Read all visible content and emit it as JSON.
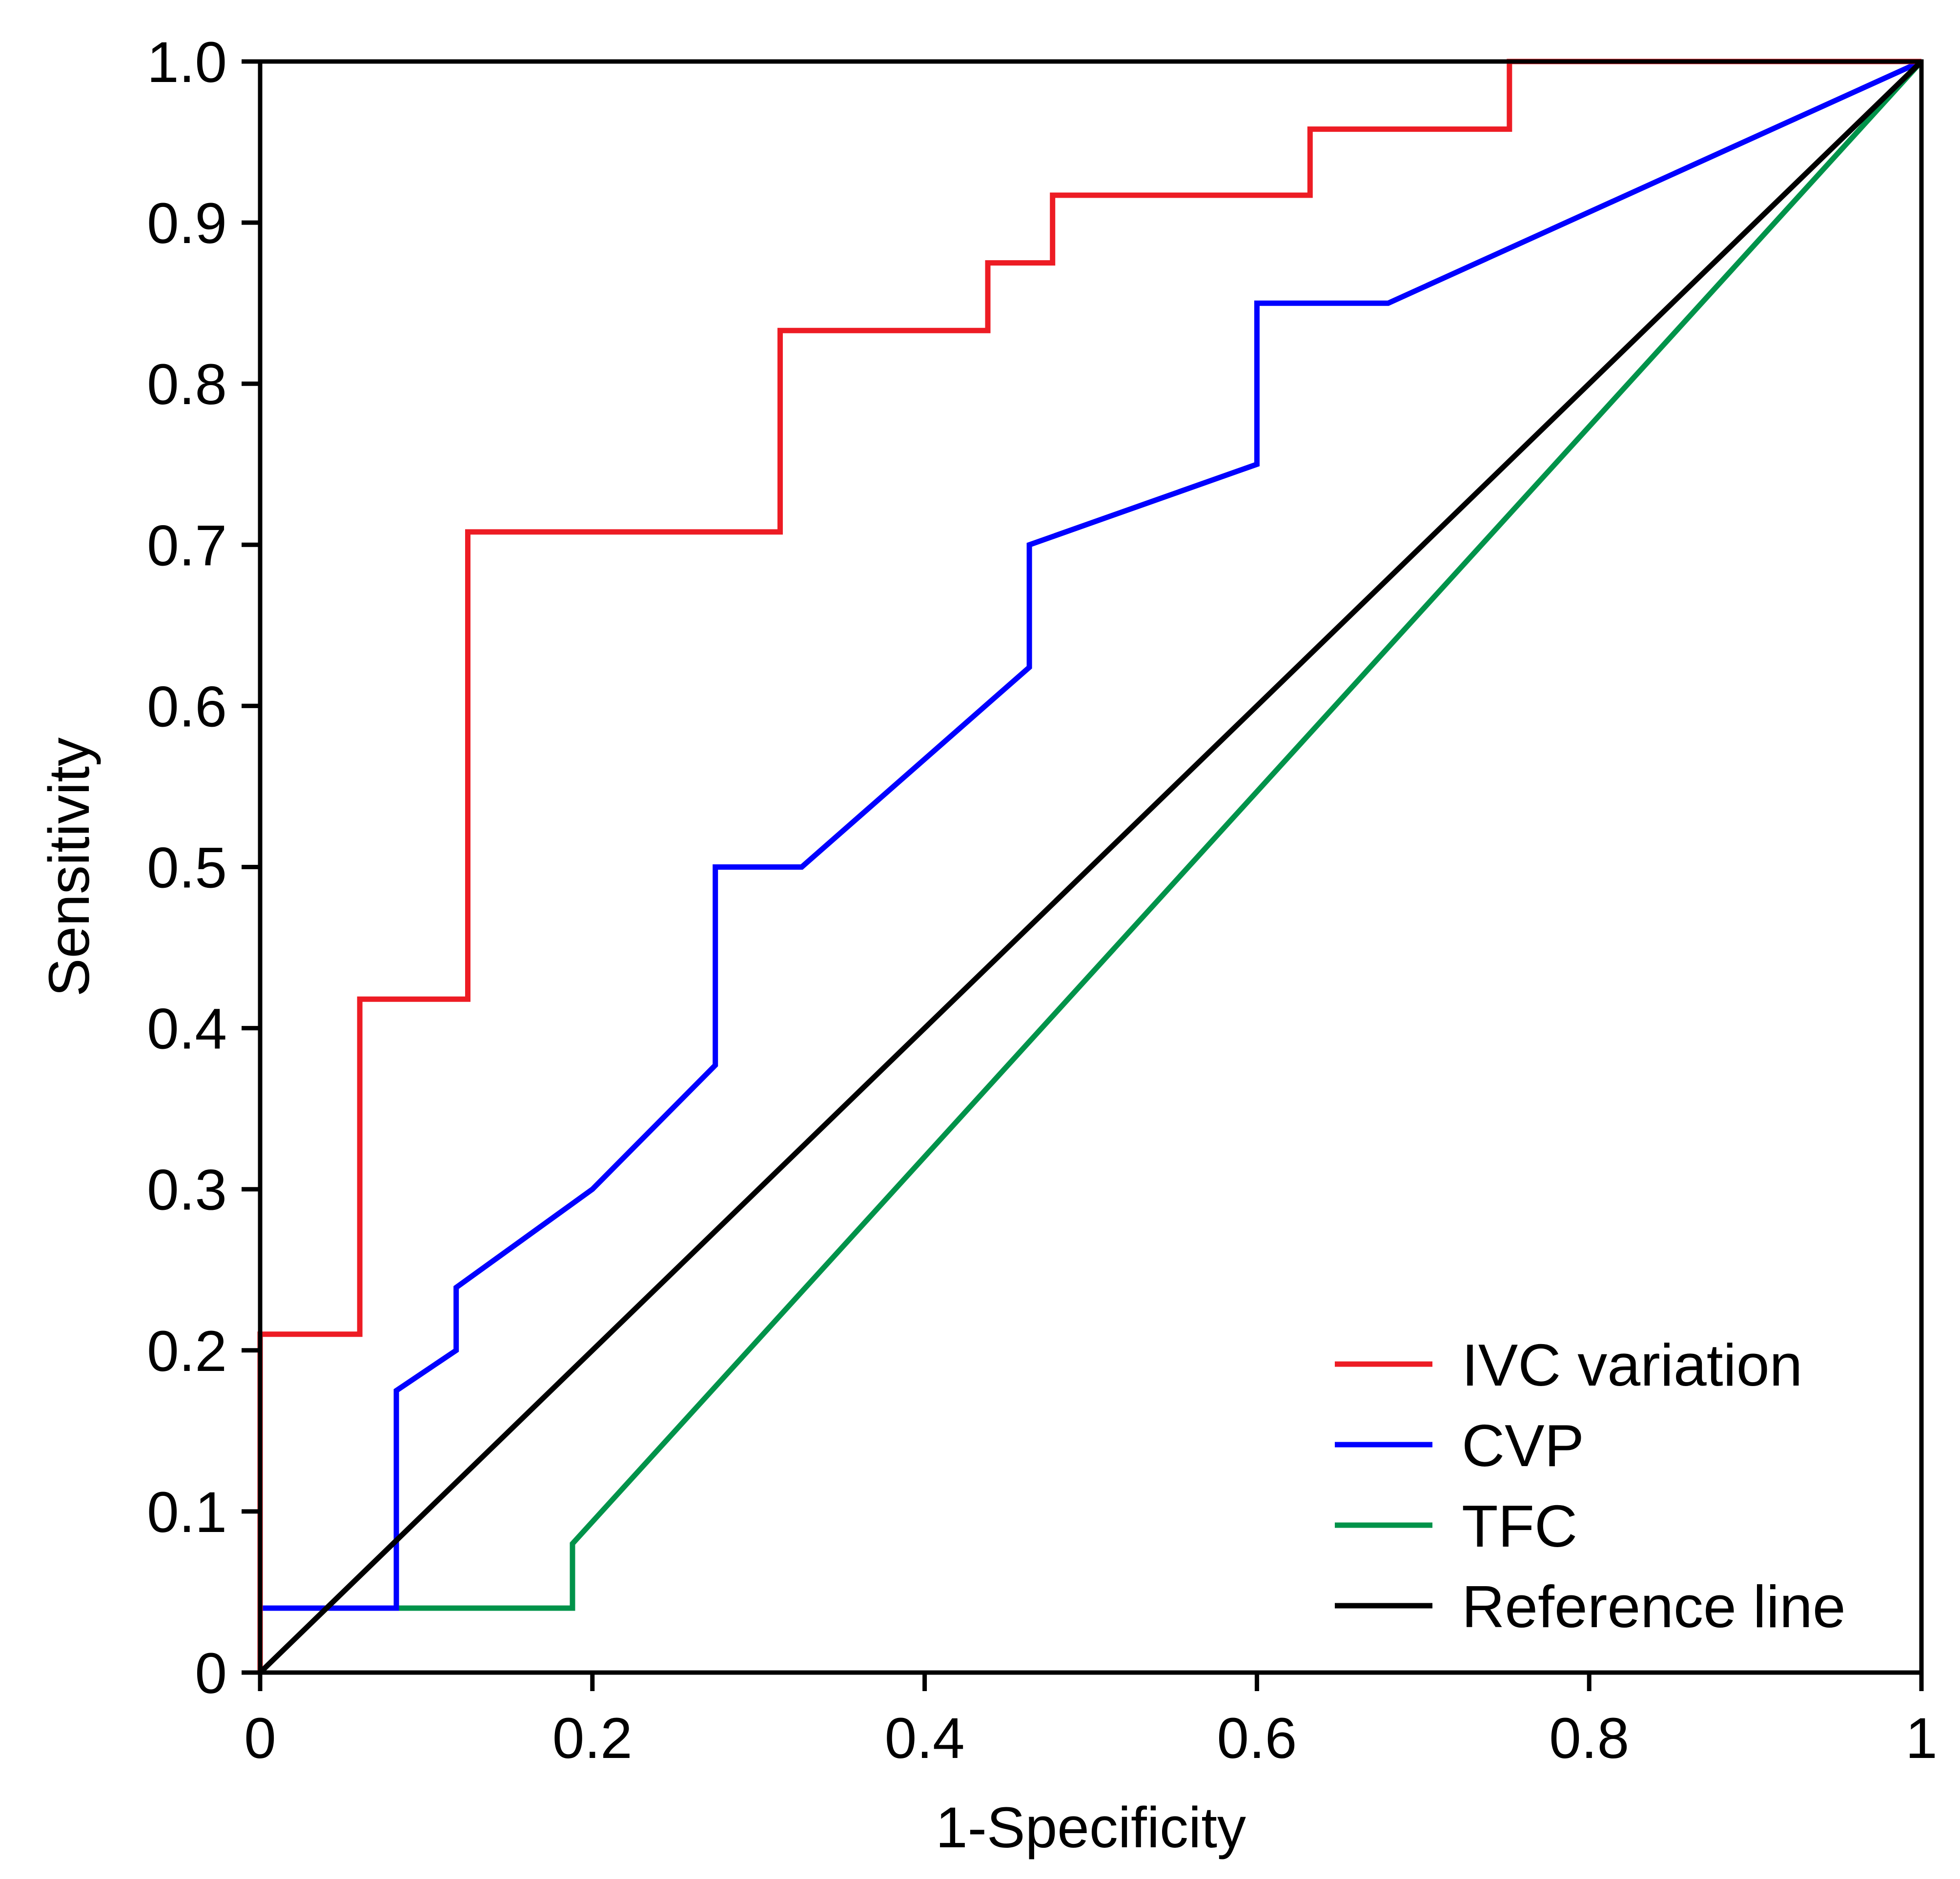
{
  "chart_data": {
    "type": "line",
    "title": "",
    "xlabel": "1-Specificity",
    "ylabel": "Sensitivity",
    "xlim": [
      0,
      1
    ],
    "ylim": [
      0,
      1
    ],
    "x_ticks": [
      0,
      0.2,
      0.4,
      0.6,
      0.8,
      1
    ],
    "x_tick_labels": [
      "0",
      "0.2",
      "0.4",
      "0.6",
      "0.8",
      "1"
    ],
    "y_ticks": [
      0,
      0.1,
      0.2,
      0.3,
      0.4,
      0.5,
      0.6,
      0.7,
      0.8,
      0.9,
      1.0
    ],
    "y_tick_labels": [
      "0",
      "0.1",
      "0.2",
      "0.3",
      "0.4",
      "0.5",
      "0.6",
      "0.7",
      "0.8",
      "0.9",
      "1.0"
    ],
    "grid": false,
    "legend_position": "bottom-right",
    "series": [
      {
        "name": "IVC variation",
        "color": "#ED1C24",
        "points": [
          [
            0,
            0
          ],
          [
            0,
            0.21
          ],
          [
            0.06,
            0.21
          ],
          [
            0.06,
            0.418
          ],
          [
            0.125,
            0.418
          ],
          [
            0.125,
            0.708
          ],
          [
            0.313,
            0.708
          ],
          [
            0.313,
            0.833
          ],
          [
            0.438,
            0.833
          ],
          [
            0.438,
            0.875
          ],
          [
            0.477,
            0.875
          ],
          [
            0.477,
            0.917
          ],
          [
            0.632,
            0.917
          ],
          [
            0.632,
            0.958
          ],
          [
            0.752,
            0.958
          ],
          [
            0.752,
            1.0
          ],
          [
            1,
            1
          ]
        ]
      },
      {
        "name": "CVP",
        "color": "#0000FF",
        "points": [
          [
            0,
            0.04
          ],
          [
            0.082,
            0.04
          ],
          [
            0.082,
            0.175
          ],
          [
            0.118,
            0.2
          ],
          [
            0.118,
            0.239
          ],
          [
            0.2,
            0.3
          ],
          [
            0.274,
            0.377
          ],
          [
            0.274,
            0.5
          ],
          [
            0.326,
            0.5
          ],
          [
            0.463,
            0.624
          ],
          [
            0.463,
            0.7
          ],
          [
            0.6,
            0.75
          ],
          [
            0.6,
            0.85
          ],
          [
            0.679,
            0.85
          ],
          [
            1,
            1
          ]
        ]
      },
      {
        "name": "TFC",
        "color": "#00934A",
        "points": [
          [
            0.082,
            0.04
          ],
          [
            0.188,
            0.04
          ],
          [
            0.188,
            0.08
          ],
          [
            1,
            1
          ]
        ]
      },
      {
        "name": "Reference line",
        "color": "#000000",
        "points": [
          [
            0,
            0
          ],
          [
            1,
            1
          ]
        ]
      }
    ]
  }
}
